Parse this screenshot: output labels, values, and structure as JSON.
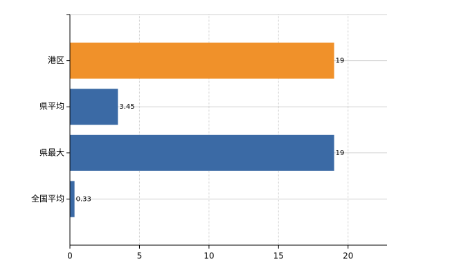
{
  "chart_data": {
    "type": "bar",
    "orientation": "horizontal",
    "categories": [
      "港区",
      "県平均",
      "県最大",
      "全国平均"
    ],
    "values": [
      19,
      3.45,
      19,
      0.33
    ],
    "colors": [
      "#f0912a",
      "#3b6aa5",
      "#3b6aa5",
      "#3b6aa5"
    ],
    "xlim": [
      0,
      22.8
    ],
    "xticks": [
      0,
      5,
      10,
      15,
      20
    ],
    "grid": true
  }
}
